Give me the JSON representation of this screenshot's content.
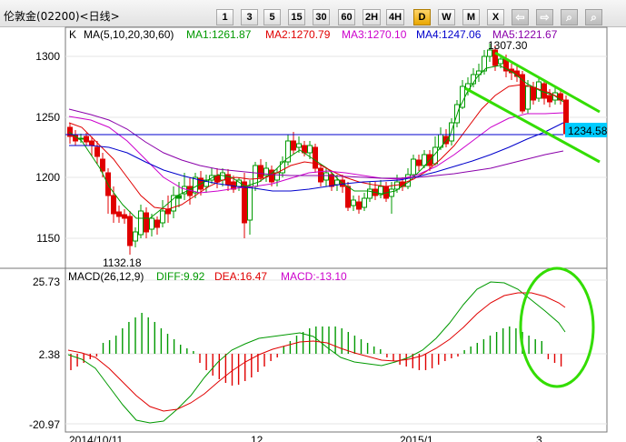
{
  "toolbar": {
    "title": "伦敦金(02200)<日线>",
    "buttons": [
      {
        "label": "1",
        "name": "period-1-button"
      },
      {
        "label": "3",
        "name": "period-3-button"
      },
      {
        "label": "5",
        "name": "period-5-button"
      },
      {
        "label": "15",
        "name": "period-15-button"
      },
      {
        "label": "30",
        "name": "period-30-button"
      },
      {
        "label": "60",
        "name": "period-60-button"
      },
      {
        "label": "2H",
        "name": "period-2h-button"
      },
      {
        "label": "4H",
        "name": "period-4h-button"
      },
      {
        "label": "D",
        "name": "period-d-button",
        "active": true
      },
      {
        "label": "W",
        "name": "period-w-button"
      },
      {
        "label": "M",
        "name": "period-m-button"
      },
      {
        "label": "X",
        "name": "period-x-button"
      }
    ],
    "icon_buttons": [
      {
        "icon": "left-arrow-icon",
        "glyph": "⇦"
      },
      {
        "icon": "right-arrow-icon",
        "glyph": "⇨"
      },
      {
        "icon": "zoom-in-icon",
        "glyph": "⌕"
      },
      {
        "icon": "zoom-out-icon",
        "glyph": "⌕"
      }
    ]
  },
  "main_chart": {
    "k_label": "K",
    "ma_title": "MA(5,10,20,30,60)",
    "ma1": "MA1:1261.87",
    "ma2": "MA2:1270.79",
    "ma3": "MA3:1270.10",
    "ma4": "MA4:1247.06",
    "ma5": "MA5:1221.67",
    "high_label": "1307.30",
    "low_label": "1132.18",
    "current_price": "1234.58",
    "y_ticks": [
      "1300",
      "1250",
      "1200",
      "1150"
    ],
    "colors": {
      "ma1": "#009900",
      "ma2": "#e00000",
      "ma3": "#cc00cc",
      "ma4": "#0000cc",
      "ma5": "#8a00aa",
      "up": "#009900",
      "down": "#e00000",
      "price": "#00ccff",
      "trend": "#33dd00"
    }
  },
  "macd_chart": {
    "title": "MACD(26,12,9)",
    "diff": "DIFF:9.92",
    "dea": "DEA:16.47",
    "macd": "MACD:-13.10",
    "y_ticks": [
      "25.73",
      "2.38",
      "-20.97"
    ],
    "x_ticks": [
      "2014/10/11",
      "12",
      "2015/1",
      "3"
    ]
  }
}
